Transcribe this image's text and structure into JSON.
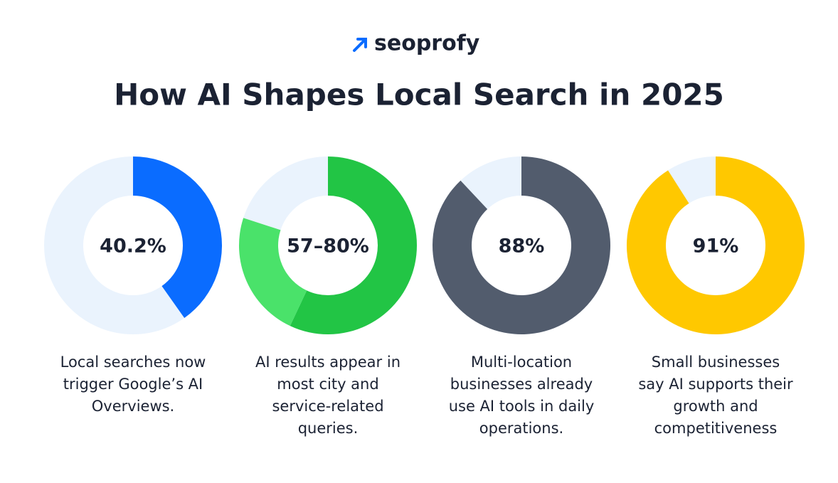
{
  "brand": "seoprofy",
  "title": "How AI Shapes Local Search in 2025",
  "track_color": "#eaf3fd",
  "chart_data": [
    {
      "type": "donut",
      "values": [
        40.2
      ],
      "value_labels": [
        "40.2%"
      ],
      "colors": [
        "#0a6cff"
      ],
      "caption": [
        "Local searches now",
        "trigger Google’s AI",
        "Overviews."
      ]
    },
    {
      "type": "donut",
      "values": [
        57,
        80
      ],
      "value_labels": [
        "57–80%"
      ],
      "colors": [
        "#22c545",
        "#4ae26a"
      ],
      "caption": [
        "AI results appear in",
        "most city and",
        "service-related",
        "queries."
      ]
    },
    {
      "type": "donut",
      "values": [
        88
      ],
      "value_labels": [
        "88%"
      ],
      "colors": [
        "#525c6d"
      ],
      "caption": [
        "Multi-location",
        "businesses already",
        "use AI tools in daily",
        "operations."
      ]
    },
    {
      "type": "donut",
      "values": [
        91
      ],
      "value_labels": [
        "91%"
      ],
      "colors": [
        "#ffc800"
      ],
      "caption": [
        "Small businesses",
        "say AI supports their",
        "growth and",
        "competitiveness"
      ]
    }
  ]
}
